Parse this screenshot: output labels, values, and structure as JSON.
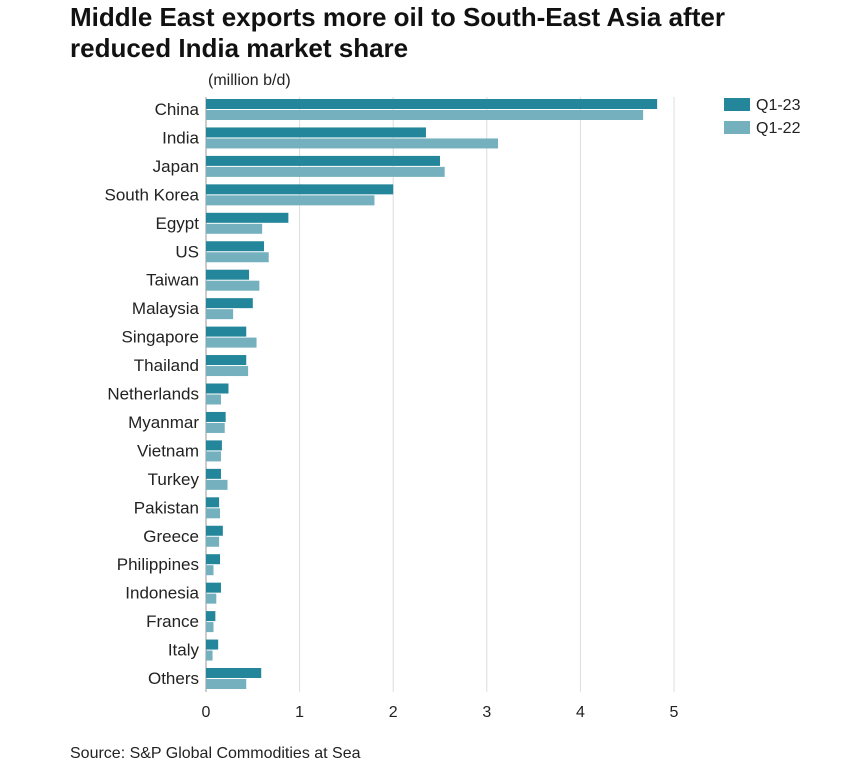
{
  "chart_data": {
    "type": "bar",
    "orientation": "horizontal",
    "title": "Middle East exports more oil to South-East Asia after reduced India market share",
    "unit_label": "(million b/d)",
    "source": "Source: S&P Global Commodities at Sea",
    "categories": [
      "China",
      "India",
      "Japan",
      "South Korea",
      "Egypt",
      "US",
      "Taiwan",
      "Malaysia",
      "Singapore",
      "Thailand",
      "Netherlands",
      "Myanmar",
      "Vietnam",
      "Turkey",
      "Pakistan",
      "Greece",
      "Philippines",
      "Indonesia",
      "France",
      "Italy",
      "Others"
    ],
    "series": [
      {
        "name": "Q1-23",
        "color": "#23869a",
        "values": [
          4.82,
          2.35,
          2.5,
          2.0,
          0.88,
          0.62,
          0.46,
          0.5,
          0.43,
          0.43,
          0.24,
          0.21,
          0.17,
          0.16,
          0.14,
          0.18,
          0.15,
          0.16,
          0.1,
          0.13,
          0.59
        ]
      },
      {
        "name": "Q1-22",
        "color": "#74b0be",
        "values": [
          4.67,
          3.12,
          2.55,
          1.8,
          0.6,
          0.67,
          0.57,
          0.29,
          0.54,
          0.45,
          0.16,
          0.2,
          0.16,
          0.23,
          0.15,
          0.14,
          0.08,
          0.11,
          0.08,
          0.07,
          0.43
        ]
      }
    ],
    "xlim": [
      0,
      5
    ],
    "xticks": [
      0,
      1,
      2,
      3,
      4,
      5
    ],
    "grid": true,
    "legend_position": "top-right"
  }
}
